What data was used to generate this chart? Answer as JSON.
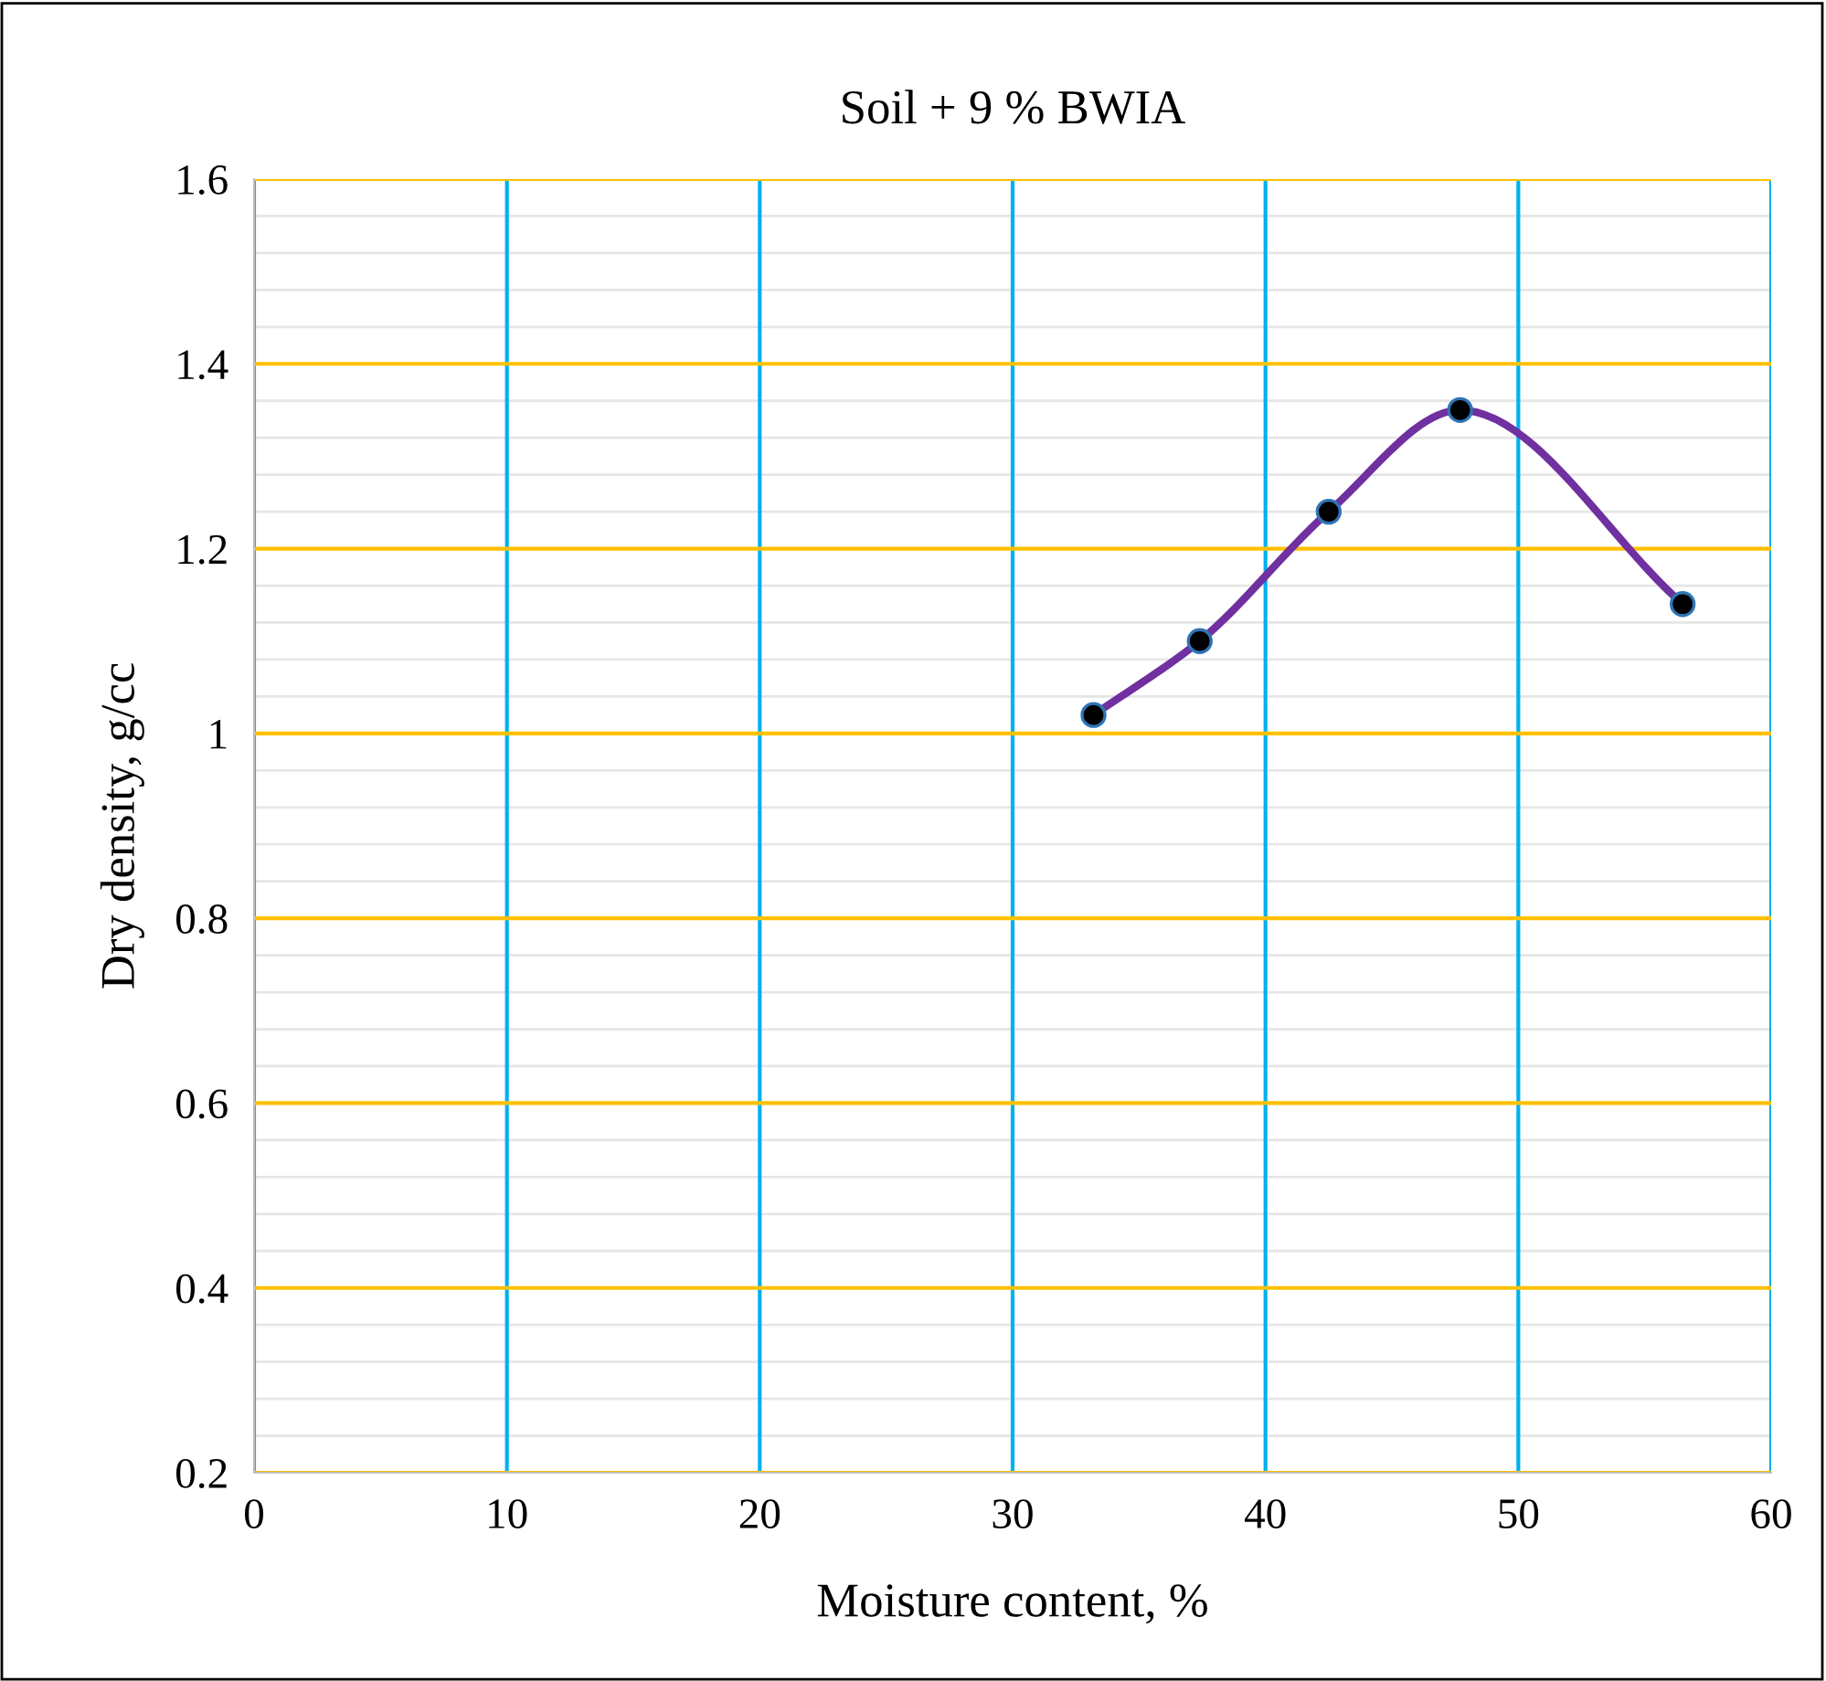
{
  "chart_data": {
    "type": "line",
    "title": "Soil + 9 % BWIA",
    "xlabel": "Moisture content, %",
    "ylabel": "Dry density, g/cc",
    "x": [
      33.2,
      37.4,
      42.5,
      47.7,
      56.5
    ],
    "series": [
      {
        "color": "#7030a0",
        "values": [
          1.02,
          1.1,
          1.24,
          1.35,
          1.14
        ]
      }
    ],
    "xlim": [
      0,
      60
    ],
    "xticks": [
      0,
      10,
      20,
      30,
      40,
      50,
      60
    ],
    "ylim": [
      0.2,
      1.6
    ],
    "yticks": [
      0.2,
      0.4,
      0.6,
      0.8,
      1,
      1.2,
      1.4,
      1.6
    ],
    "grid": true,
    "marker": "circle",
    "line_style": "solid",
    "legend": false
  }
}
